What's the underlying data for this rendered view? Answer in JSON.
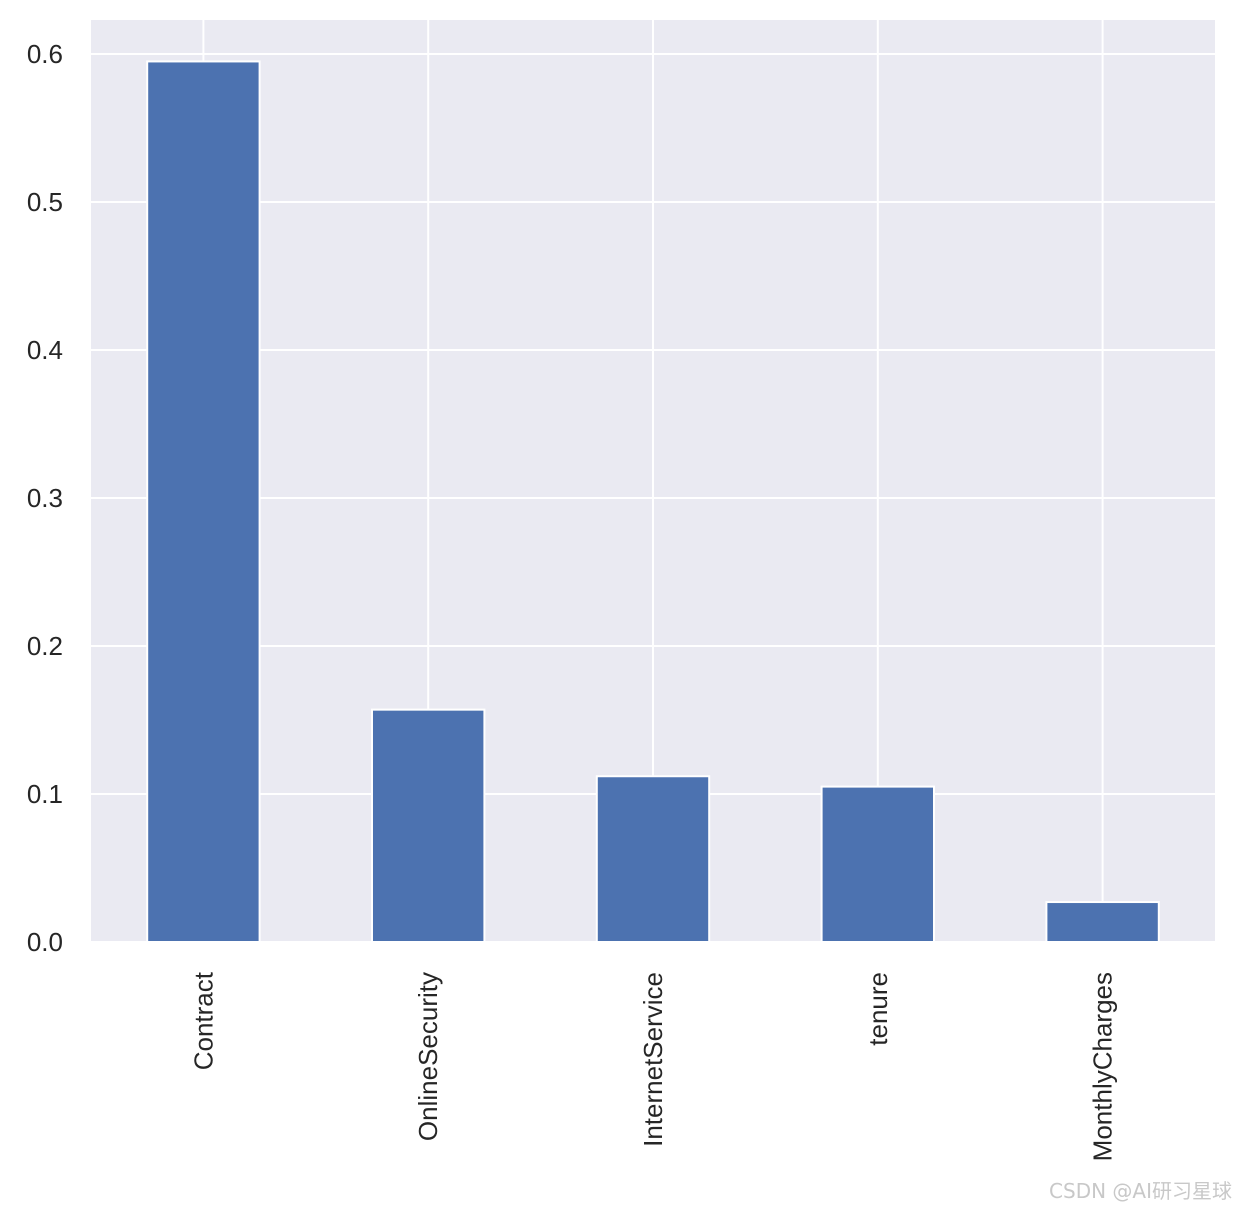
{
  "chart_data": {
    "type": "bar",
    "title": "",
    "xlabel": "",
    "ylabel": "",
    "categories": [
      "Contract",
      "OnlineSecurity",
      "InternetService",
      "tenure",
      "MonthlyCharges"
    ],
    "values": [
      0.595,
      0.157,
      0.112,
      0.105,
      0.027
    ],
    "ylim": [
      0,
      0.623
    ],
    "yticks": [
      0.0,
      0.1,
      0.2,
      0.3,
      0.4,
      0.5,
      0.6
    ],
    "ytick_labels": [
      "0.0",
      "0.1",
      "0.2",
      "0.3",
      "0.4",
      "0.5",
      "0.6"
    ],
    "xtick_rotation": "vertical",
    "grid": true,
    "style": "seaborn darkgrid",
    "colors": {
      "bar": "#4c72b0",
      "plot_background": "#eaeaf2",
      "grid": "#ffffff",
      "text": "#262626"
    }
  },
  "watermark": {
    "text": "CSDN @AI研习星球"
  }
}
